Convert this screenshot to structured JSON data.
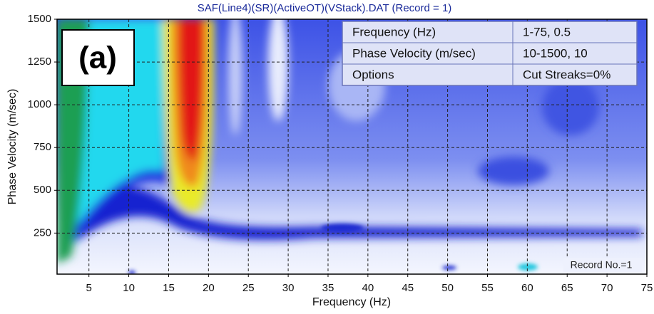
{
  "chart_data": {
    "type": "heatmap",
    "title": "SAF(Line4)(SR)(ActiveOT)(VStack).DAT (Record = 1)",
    "xlabel": "Frequency (Hz)",
    "ylabel": "Phase Velocity (m/sec)",
    "xlim": [
      1,
      75
    ],
    "ylim": [
      10,
      1500
    ],
    "xticks": [
      5,
      10,
      15,
      20,
      25,
      30,
      35,
      40,
      45,
      50,
      55,
      60,
      65,
      70,
      75
    ],
    "yticks": [
      250,
      500,
      750,
      1000,
      1250,
      1500
    ],
    "grid": true,
    "panel_label": "(a)",
    "record_note": "Record No.=1"
  },
  "info_table": {
    "rows": [
      [
        "Frequency (Hz)",
        "1-75, 0.5"
      ],
      [
        "Phase Velocity (m/sec)",
        "10-1500, 10"
      ],
      [
        "Options",
        "Cut Streaks=0%"
      ]
    ]
  }
}
